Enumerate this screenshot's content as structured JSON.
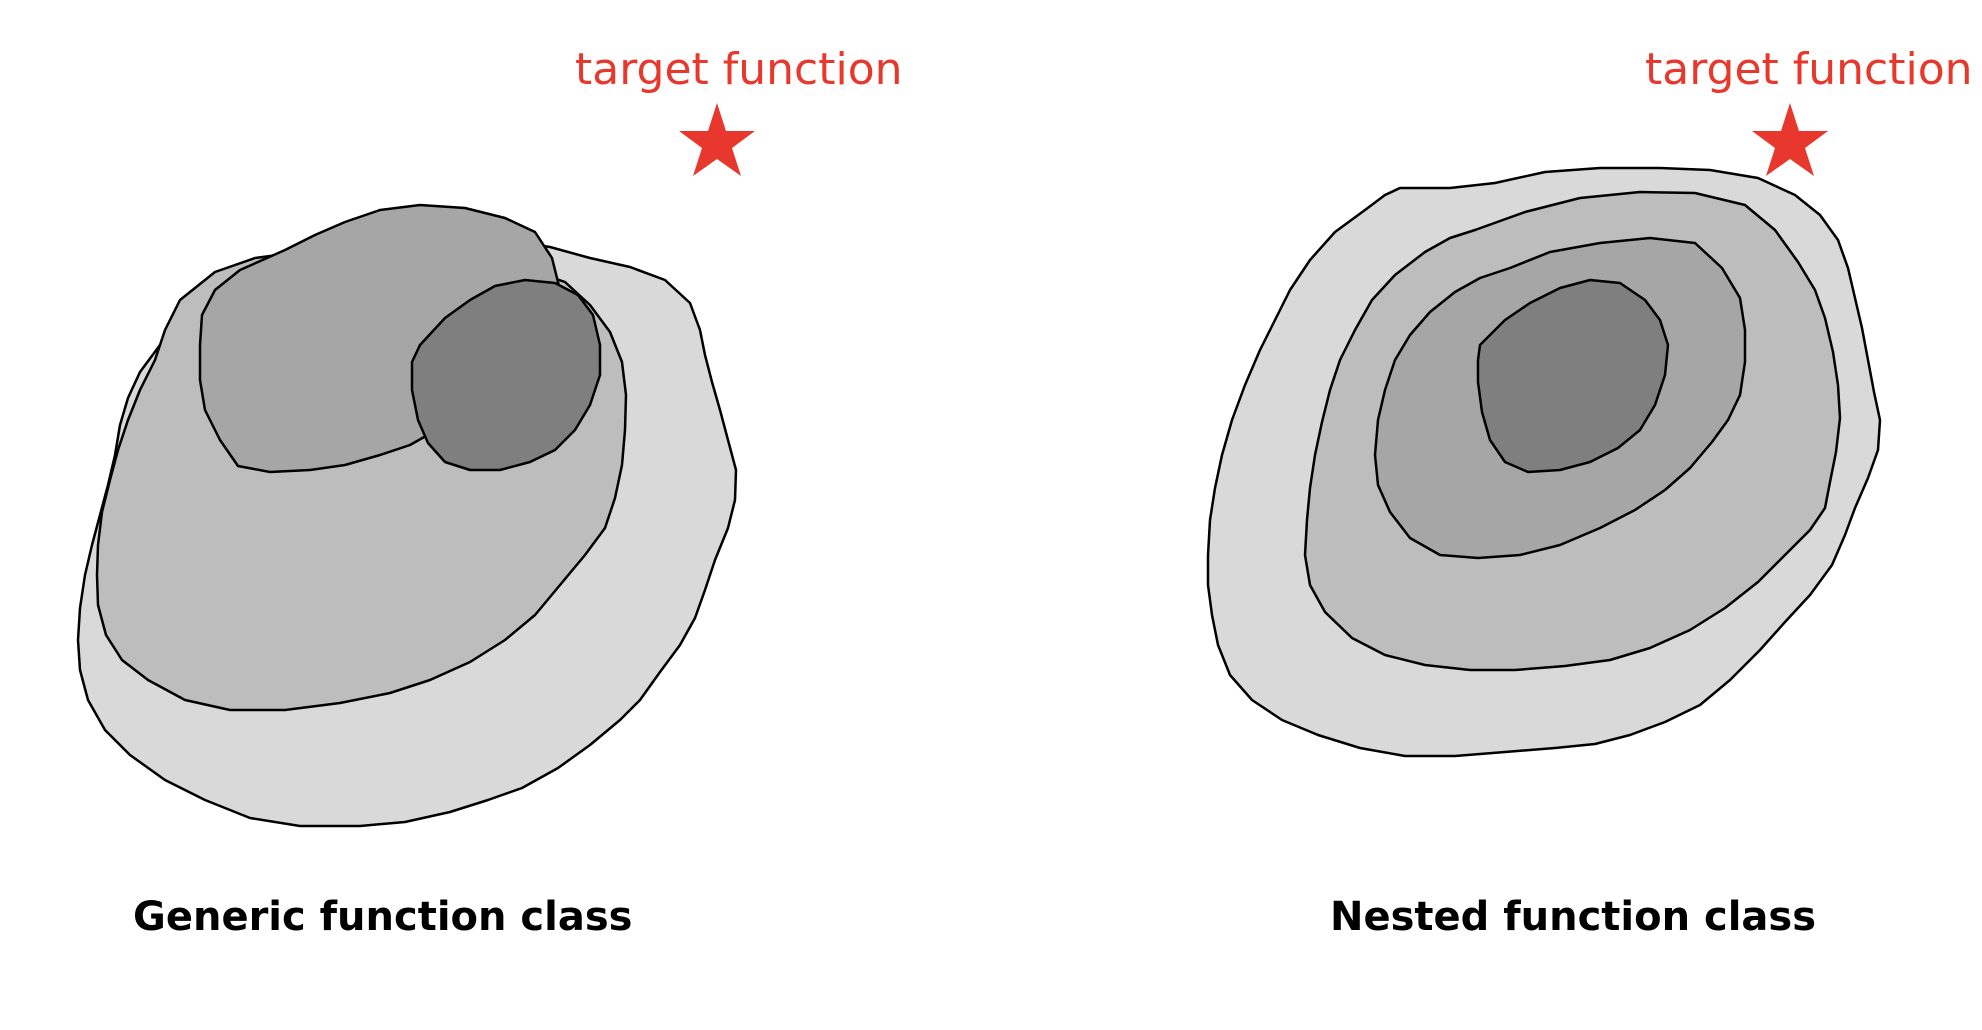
{
  "left_panel": {
    "target_label": "target function",
    "caption": "Generic function class"
  },
  "right_panel": {
    "target_label": "target function",
    "caption": "Nested function class"
  },
  "colors": {
    "target": "#e8372c",
    "outer_fill": "#d9d9d9",
    "middle_fill": "#bdbdbd",
    "inner_fill": "#a6a6a6",
    "core_fill": "#7f7f7f",
    "outline": "#000000"
  },
  "icons": {
    "target_marker": "star-icon"
  }
}
